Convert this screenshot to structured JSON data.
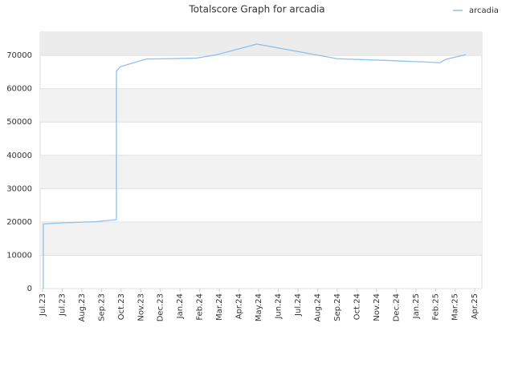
{
  "chart_data": {
    "type": "line",
    "title": "Totalscore Graph for arcadia",
    "xlim": [
      -0.12,
      22.36
    ],
    "xticks": [
      {
        "value": 0,
        "label": "Jul.23"
      },
      {
        "value": 1,
        "label": "Jul.23"
      },
      {
        "value": 2,
        "label": "Aug.23"
      },
      {
        "value": 3,
        "label": "Sep.23"
      },
      {
        "value": 4,
        "label": "Oct.23"
      },
      {
        "value": 5,
        "label": "Nov.23"
      },
      {
        "value": 6,
        "label": "Dec.23"
      },
      {
        "value": 7,
        "label": "Jan.24"
      },
      {
        "value": 8,
        "label": "Feb.24"
      },
      {
        "value": 9,
        "label": "Mar.24"
      },
      {
        "value": 10,
        "label": "Apr.24"
      },
      {
        "value": 11,
        "label": "May.24"
      },
      {
        "value": 12,
        "label": "Jun.24"
      },
      {
        "value": 13,
        "label": "Jul.24"
      },
      {
        "value": 14,
        "label": "Aug.24"
      },
      {
        "value": 15,
        "label": "Sep.24"
      },
      {
        "value": 16,
        "label": "Oct.24"
      },
      {
        "value": 17,
        "label": "Nov.24"
      },
      {
        "value": 18,
        "label": "Dec.24"
      },
      {
        "value": 19,
        "label": "Jan.25"
      },
      {
        "value": 20,
        "label": "Feb.25"
      },
      {
        "value": 21,
        "label": "Mar.25"
      },
      {
        "value": 22,
        "label": "Apr.25"
      }
    ],
    "ylim": [
      0,
      77000
    ],
    "yticks": [
      0,
      10000,
      20000,
      30000,
      40000,
      50000,
      60000,
      70000
    ],
    "grid": true,
    "legend": "top-right",
    "x": [
      0.04,
      0.04,
      0.94,
      2.74,
      3.76,
      3.76,
      3.96,
      5.27,
      6.42,
      7.85,
      8.87,
      10.91,
      15.0,
      17.45,
      19.49,
      20.23,
      20.51,
      21.54
    ],
    "series": [
      {
        "name": "arcadia",
        "color": "#8ec1ee",
        "values": [
          0,
          19400,
          19700,
          20100,
          20700,
          65200,
          66600,
          68900,
          69000,
          69200,
          70200,
          73400,
          69000,
          68500,
          68000,
          67800,
          68800,
          70200
        ]
      }
    ]
  }
}
